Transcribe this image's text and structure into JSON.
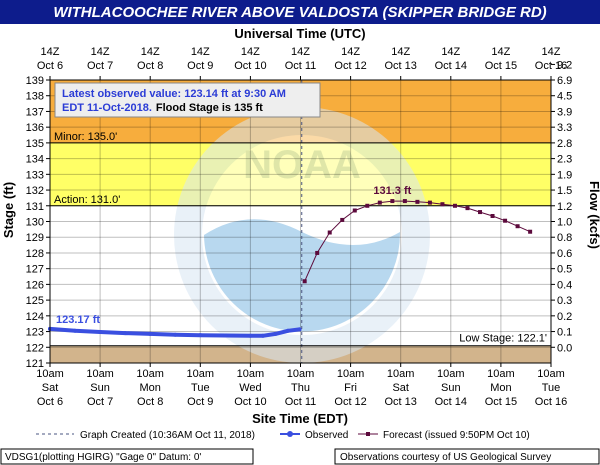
{
  "header": {
    "title": "WITHLACOOCHEE RIVER ABOVE VALDOSTA (SKIPPER BRIDGE RD)"
  },
  "colors": {
    "title_bg": "#0d1c8c",
    "major_band": "#f7ad3d",
    "minor_band": "#ffff66",
    "low_band": "#d2b48c",
    "observed": "#3a4fe0",
    "forecast": "#5c0a3c",
    "plot_bg": "#ffffff"
  },
  "info_box": {
    "line1": "Latest observed value: 123.14 ft at 9:30 AM",
    "line2_blue": "EDT 11-Oct-2018.",
    "line2_black": "Flood Stage is 135 ft"
  },
  "watermark": {
    "text": "NOAA"
  },
  "chart_data": {
    "type": "line",
    "title": "WITHLACOOCHEE RIVER ABOVE VALDOSTA (SKIPPER BRIDGE RD)",
    "xlabel": "Site Time (EDT)",
    "x2label": "Universal Time (UTC)",
    "ylabel": "Stage (ft)",
    "y2label": "Flow (kcfs)",
    "ylim": [
      121,
      139
    ],
    "yticks": [
      121,
      122,
      123,
      124,
      125,
      126,
      127,
      128,
      129,
      130,
      131,
      132,
      133,
      134,
      135,
      136,
      137,
      138,
      139
    ],
    "flow_ticks": [
      {
        "stage": 122,
        "label": "0.0"
      },
      {
        "stage": 123,
        "label": "0.1"
      },
      {
        "stage": 124,
        "label": "0.2"
      },
      {
        "stage": 125,
        "label": "0.3"
      },
      {
        "stage": 126,
        "label": "0.4"
      },
      {
        "stage": 127,
        "label": "0.5"
      },
      {
        "stage": 128,
        "label": "0.6"
      },
      {
        "stage": 129,
        "label": "0.8"
      },
      {
        "stage": 130,
        "label": "1.0"
      },
      {
        "stage": 131,
        "label": "1.2"
      },
      {
        "stage": 132,
        "label": "1.5"
      },
      {
        "stage": 133,
        "label": "1.9"
      },
      {
        "stage": 134,
        "label": "2.3"
      },
      {
        "stage": 135,
        "label": "2.8"
      },
      {
        "stage": 136,
        "label": "3.3"
      },
      {
        "stage": 137,
        "label": "3.9"
      },
      {
        "stage": 138,
        "label": "4.5"
      },
      {
        "stage": 139,
        "label": "6.9"
      },
      {
        "stage": 139.99,
        "label": "9.2"
      }
    ],
    "xlim": [
      "2018-10-06T10:00",
      "2018-10-16T10:00"
    ],
    "x_ticks_bottom": [
      {
        "time": "2018-10-06T10:00",
        "l1": "10am",
        "l2": "Sat",
        "l3": "Oct 6"
      },
      {
        "time": "2018-10-07T10:00",
        "l1": "10am",
        "l2": "Sun",
        "l3": "Oct 7"
      },
      {
        "time": "2018-10-08T10:00",
        "l1": "10am",
        "l2": "Mon",
        "l3": "Oct 8"
      },
      {
        "time": "2018-10-09T10:00",
        "l1": "10am",
        "l2": "Tue",
        "l3": "Oct 9"
      },
      {
        "time": "2018-10-10T10:00",
        "l1": "10am",
        "l2": "Wed",
        "l3": "Oct 10"
      },
      {
        "time": "2018-10-11T10:00",
        "l1": "10am",
        "l2": "Thu",
        "l3": "Oct 11"
      },
      {
        "time": "2018-10-12T10:00",
        "l1": "10am",
        "l2": "Fri",
        "l3": "Oct 12"
      },
      {
        "time": "2018-10-13T10:00",
        "l1": "10am",
        "l2": "Sat",
        "l3": "Oct 13"
      },
      {
        "time": "2018-10-14T10:00",
        "l1": "10am",
        "l2": "Sun",
        "l3": "Oct 14"
      },
      {
        "time": "2018-10-15T10:00",
        "l1": "10am",
        "l2": "Mon",
        "l3": "Oct 15"
      },
      {
        "time": "2018-10-16T10:00",
        "l1": "10am",
        "l2": "Tue",
        "l3": "Oct 16"
      }
    ],
    "x_ticks_top": [
      {
        "time": "2018-10-06T10:00",
        "l1": "14Z",
        "l2": "Oct 6"
      },
      {
        "time": "2018-10-07T10:00",
        "l1": "14Z",
        "l2": "Oct 7"
      },
      {
        "time": "2018-10-08T10:00",
        "l1": "14Z",
        "l2": "Oct 8"
      },
      {
        "time": "2018-10-09T10:00",
        "l1": "14Z",
        "l2": "Oct 9"
      },
      {
        "time": "2018-10-10T10:00",
        "l1": "14Z",
        "l2": "Oct 10"
      },
      {
        "time": "2018-10-11T10:00",
        "l1": "14Z",
        "l2": "Oct 11"
      },
      {
        "time": "2018-10-12T10:00",
        "l1": "14Z",
        "l2": "Oct 12"
      },
      {
        "time": "2018-10-13T10:00",
        "l1": "14Z",
        "l2": "Oct 13"
      },
      {
        "time": "2018-10-14T10:00",
        "l1": "14Z",
        "l2": "Oct 14"
      },
      {
        "time": "2018-10-15T10:00",
        "l1": "14Z",
        "l2": "Oct 15"
      },
      {
        "time": "2018-10-16T10:00",
        "l1": "14Z",
        "l2": "Oct 16"
      }
    ],
    "grid": true,
    "bands": [
      {
        "name": "major",
        "from": 135,
        "to": 139
      },
      {
        "name": "minor",
        "from": 131,
        "to": 135
      },
      {
        "name": "low",
        "from": 121,
        "to": 122.1
      }
    ],
    "thresholds": [
      {
        "label": "Minor: 135.0'",
        "value": 135,
        "align": "left"
      },
      {
        "label": "Action: 131.0'",
        "value": 131,
        "align": "left"
      },
      {
        "label": "Low Stage: 122.1'",
        "value": 122.1,
        "align": "right"
      }
    ],
    "graph_created": "2018-10-11T10:36",
    "series": [
      {
        "name": "Observed",
        "style": "observed",
        "label": "123.17 ft",
        "points": [
          {
            "t": "2018-10-06T10:00",
            "y": 123.17
          },
          {
            "t": "2018-10-06T22:00",
            "y": 123.05
          },
          {
            "t": "2018-10-07T10:00",
            "y": 122.97
          },
          {
            "t": "2018-10-07T22:00",
            "y": 122.9
          },
          {
            "t": "2018-10-08T10:00",
            "y": 122.85
          },
          {
            "t": "2018-10-08T22:00",
            "y": 122.8
          },
          {
            "t": "2018-10-09T10:00",
            "y": 122.77
          },
          {
            "t": "2018-10-09T22:00",
            "y": 122.75
          },
          {
            "t": "2018-10-10T10:00",
            "y": 122.73
          },
          {
            "t": "2018-10-10T16:00",
            "y": 122.73
          },
          {
            "t": "2018-10-10T22:00",
            "y": 122.85
          },
          {
            "t": "2018-10-11T04:00",
            "y": 123.05
          },
          {
            "t": "2018-10-11T09:30",
            "y": 123.14
          }
        ]
      },
      {
        "name": "Forecast",
        "style": "forecast",
        "label": "131.3 ft",
        "label_t": "2018-10-13T06:00",
        "points": [
          {
            "t": "2018-10-11T12:00",
            "y": 126.2
          },
          {
            "t": "2018-10-11T18:00",
            "y": 128.0
          },
          {
            "t": "2018-10-12T00:00",
            "y": 129.3
          },
          {
            "t": "2018-10-12T06:00",
            "y": 130.1
          },
          {
            "t": "2018-10-12T12:00",
            "y": 130.7
          },
          {
            "t": "2018-10-12T18:00",
            "y": 131.0
          },
          {
            "t": "2018-10-13T00:00",
            "y": 131.2
          },
          {
            "t": "2018-10-13T06:00",
            "y": 131.3
          },
          {
            "t": "2018-10-13T12:00",
            "y": 131.3
          },
          {
            "t": "2018-10-13T18:00",
            "y": 131.25
          },
          {
            "t": "2018-10-14T00:00",
            "y": 131.2
          },
          {
            "t": "2018-10-14T06:00",
            "y": 131.1
          },
          {
            "t": "2018-10-14T12:00",
            "y": 131.0
          },
          {
            "t": "2018-10-14T18:00",
            "y": 130.85
          },
          {
            "t": "2018-10-15T00:00",
            "y": 130.6
          },
          {
            "t": "2018-10-15T06:00",
            "y": 130.35
          },
          {
            "t": "2018-10-15T12:00",
            "y": 130.05
          },
          {
            "t": "2018-10-15T18:00",
            "y": 129.7
          },
          {
            "t": "2018-10-16T00:00",
            "y": 129.35
          }
        ]
      }
    ]
  },
  "legend": {
    "graph_created": "Graph Created (10:36AM Oct 11, 2018)",
    "observed": "Observed",
    "forecast": "Forecast (issued 9:50PM Oct 10)"
  },
  "footer": {
    "left": "VDSG1(plotting HGIRG) \"Gage 0\" Datum: 0'",
    "right": "Observations courtesy of US Geological Survey"
  }
}
